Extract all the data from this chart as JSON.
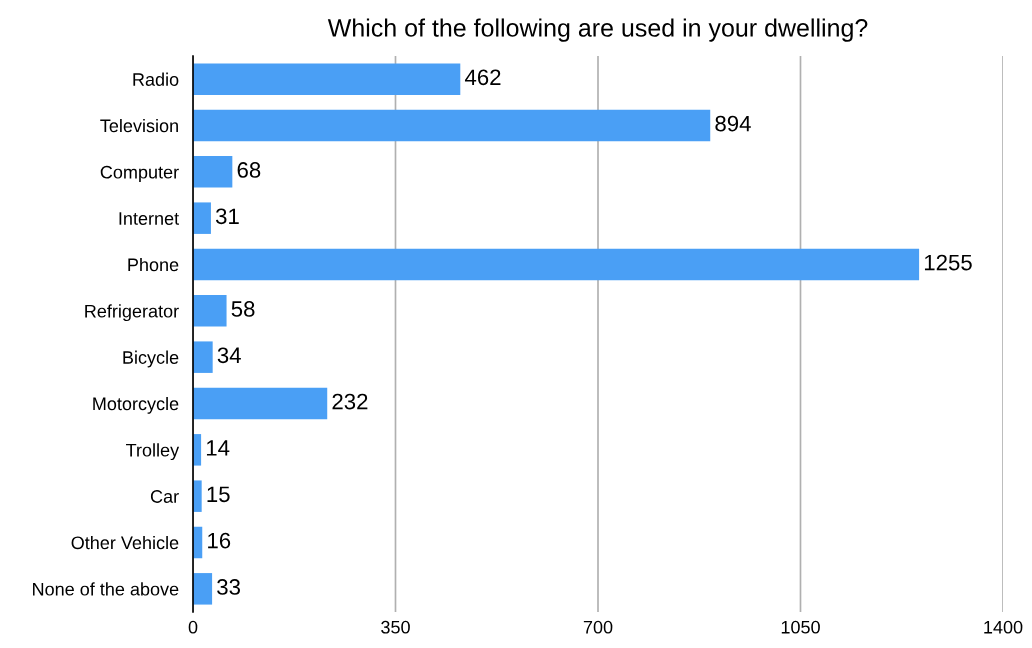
{
  "chart_data": {
    "type": "bar",
    "orientation": "horizontal",
    "title": "Which of the following are used in your dwelling?",
    "categories": [
      "Radio",
      "Television",
      "Computer",
      "Internet",
      "Phone",
      "Refrigerator",
      "Bicycle",
      "Motorcycle",
      "Trolley",
      "Car",
      "Other Vehicle",
      "None of the above"
    ],
    "values": [
      462,
      894,
      68,
      31,
      1255,
      58,
      34,
      232,
      14,
      15,
      16,
      33
    ],
    "color": "#4a9ff5",
    "data_labels": true,
    "xlim": [
      0,
      1400
    ],
    "xticks": [
      0,
      350,
      700,
      1050,
      1400
    ],
    "grid": "x"
  }
}
